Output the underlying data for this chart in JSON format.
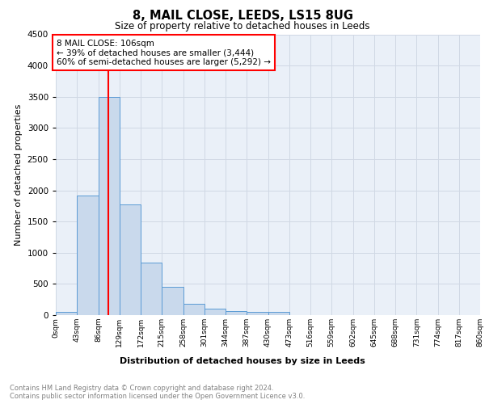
{
  "title": "8, MAIL CLOSE, LEEDS, LS15 8UG",
  "subtitle": "Size of property relative to detached houses in Leeds",
  "xlabel": "Distribution of detached houses by size in Leeds",
  "ylabel": "Number of detached properties",
  "bar_color": "#c9d9ec",
  "bar_edge_color": "#5b9bd5",
  "grid_color": "#d0d8e4",
  "bg_color": "#eaf0f8",
  "vline_x": 106,
  "vline_color": "red",
  "annotation_text": "8 MAIL CLOSE: 106sqm\n← 39% of detached houses are smaller (3,444)\n60% of semi-detached houses are larger (5,292) →",
  "annotation_box_color": "white",
  "annotation_box_edge": "red",
  "bin_edges": [
    0,
    43,
    86,
    129,
    172,
    215,
    258,
    301,
    344,
    387,
    430,
    473,
    516,
    559,
    602,
    645,
    688,
    731,
    774,
    817,
    860
  ],
  "bin_heights": [
    55,
    1920,
    3500,
    1780,
    840,
    450,
    175,
    105,
    65,
    55,
    55,
    0,
    0,
    0,
    0,
    0,
    0,
    0,
    0,
    0
  ],
  "tick_labels": [
    "0sqm",
    "43sqm",
    "86sqm",
    "129sqm",
    "172sqm",
    "215sqm",
    "258sqm",
    "301sqm",
    "344sqm",
    "387sqm",
    "430sqm",
    "473sqm",
    "516sqm",
    "559sqm",
    "602sqm",
    "645sqm",
    "688sqm",
    "731sqm",
    "774sqm",
    "817sqm",
    "860sqm"
  ],
  "ylim": [
    0,
    4500
  ],
  "yticks": [
    0,
    500,
    1000,
    1500,
    2000,
    2500,
    3000,
    3500,
    4000,
    4500
  ],
  "footer_line1": "Contains HM Land Registry data © Crown copyright and database right 2024.",
  "footer_line2": "Contains public sector information licensed under the Open Government Licence v3.0."
}
